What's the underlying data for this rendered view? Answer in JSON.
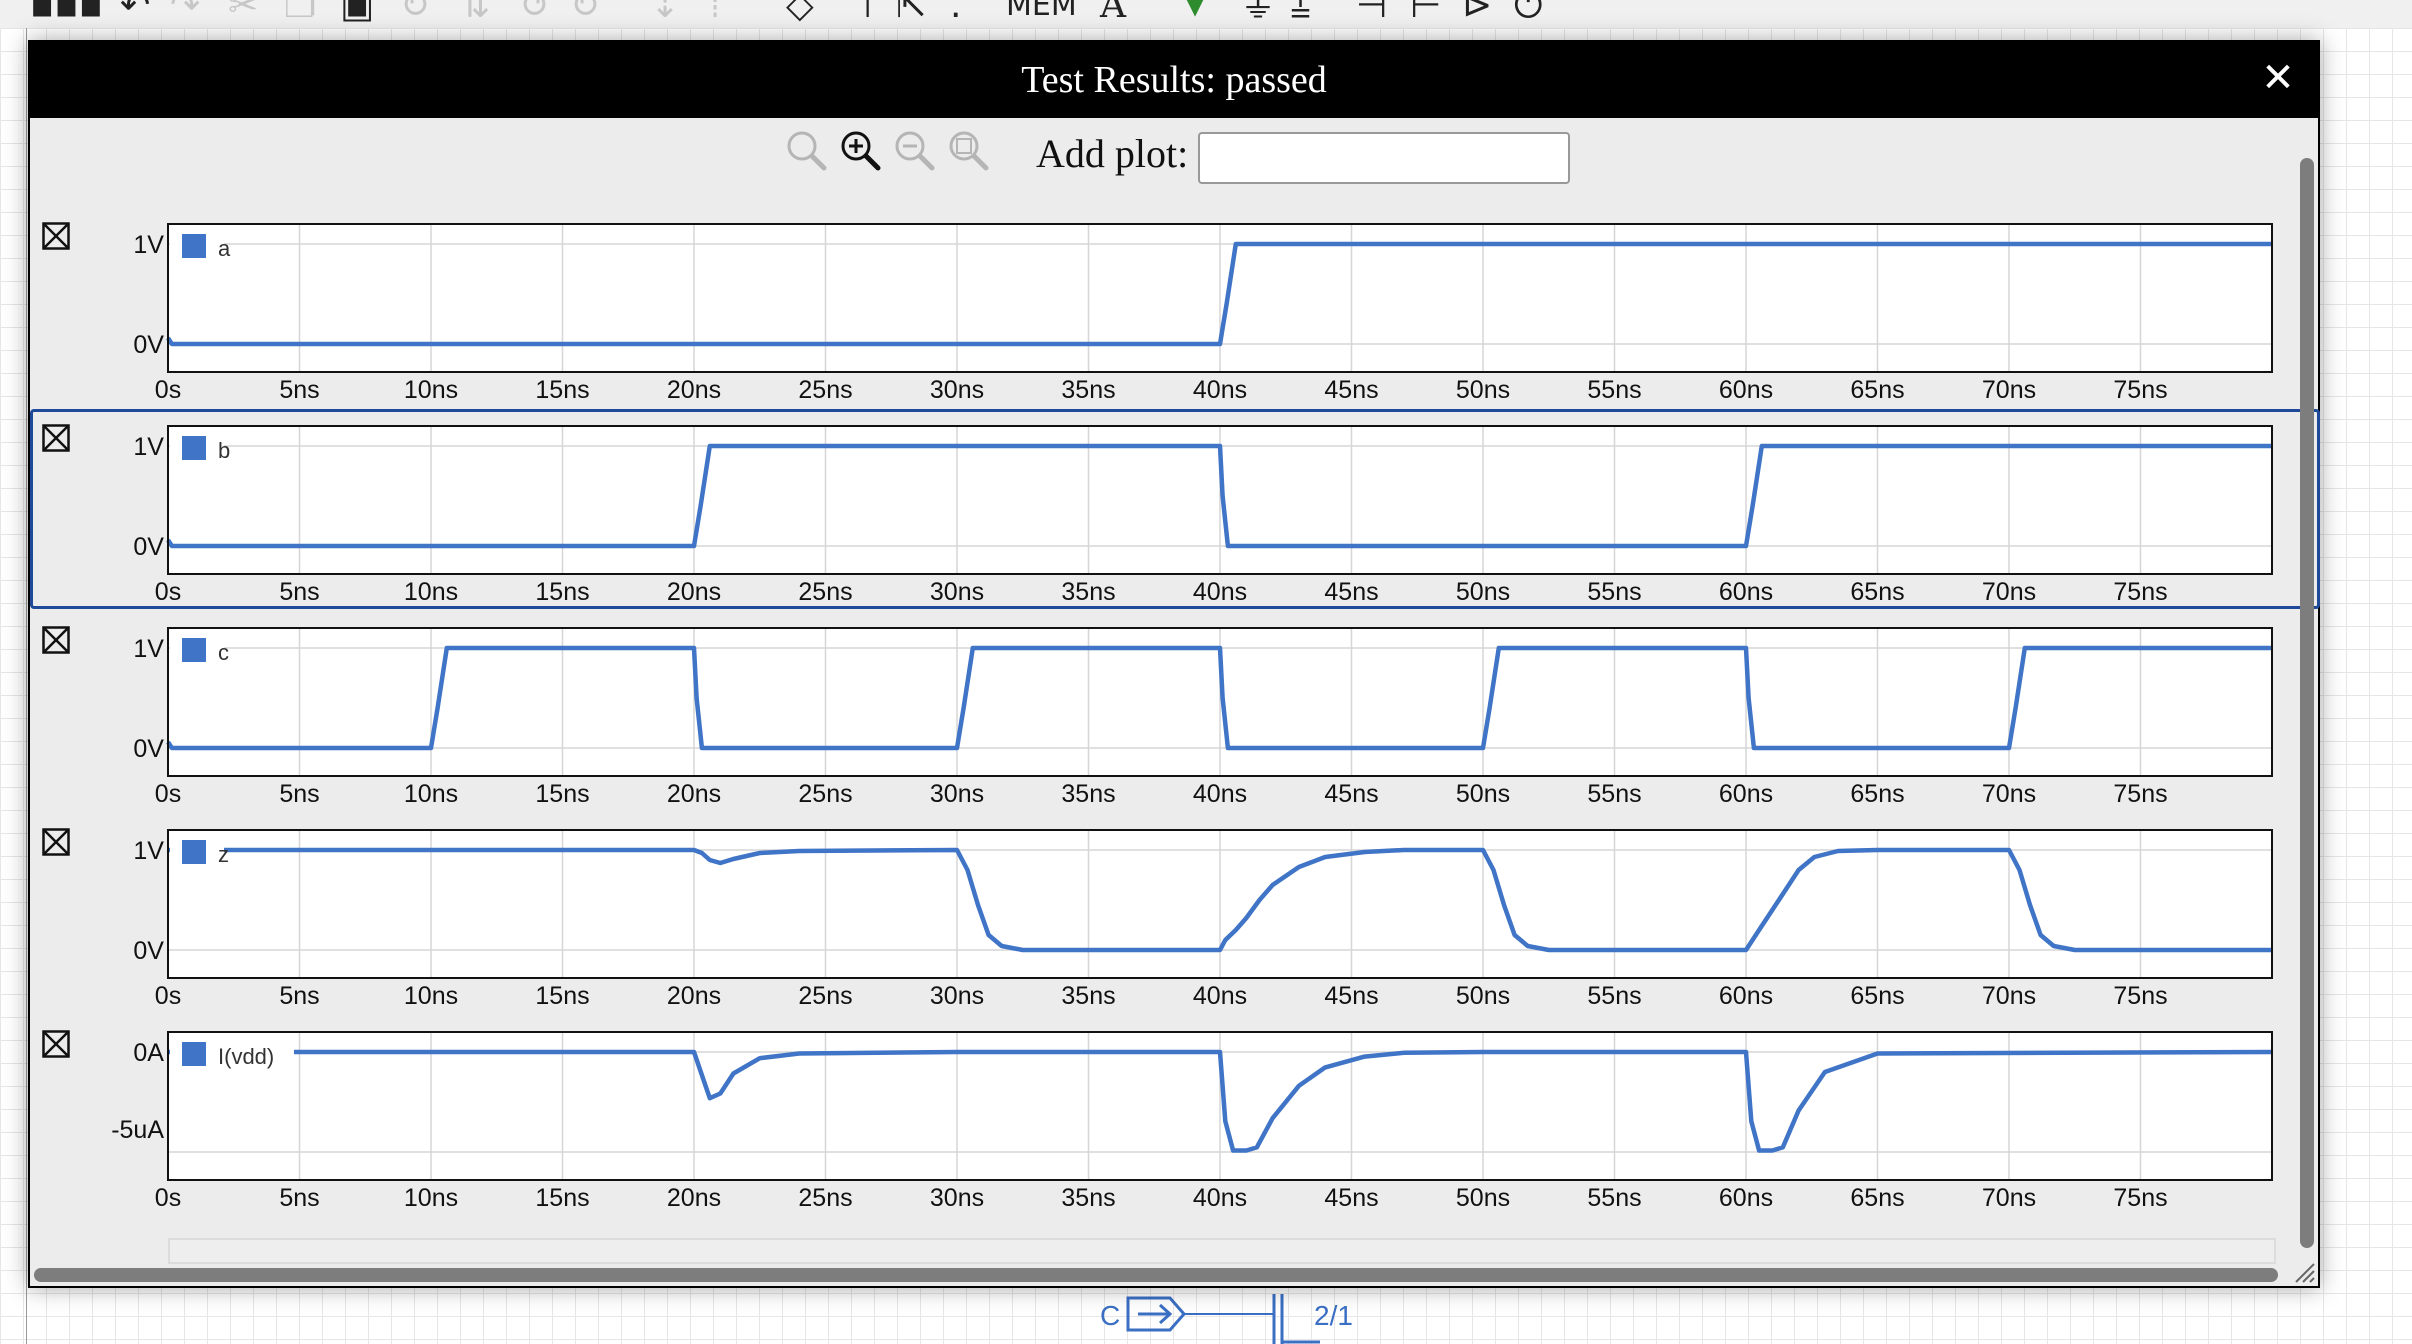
{
  "window": {
    "title": "Test Results: passed",
    "close_glyph": "✕"
  },
  "toolbar": {
    "mem_label": "MEM",
    "text_tool_label": "A",
    "icons": [
      "grid-menu-icon",
      "undo-icon",
      "redo-icon",
      "cut-icon",
      "copy-icon",
      "paste-icon",
      "rotate-icon",
      "reflect-icon",
      "probe-icon",
      "text-tool-icon",
      "check-icon",
      "ground-icon",
      "waveform-icon",
      "transistor-icon",
      "gate-icon",
      "power-icon"
    ]
  },
  "zoom": {
    "add_plot_label": "Add plot:",
    "add_plot_value": "",
    "icons": [
      "zoom-reset-icon",
      "zoom-in-icon",
      "zoom-out-icon",
      "zoom-fit-icon"
    ]
  },
  "schematic": {
    "port_label": "C",
    "ratio_label": "2/1"
  },
  "colors": {
    "trace": "#3f74c6",
    "selection": "#1f4a99",
    "grid": "#d6d6d6"
  },
  "chart_data": [
    {
      "type": "line",
      "legend": "a",
      "x_unit": "ns",
      "xlim": [
        0,
        80
      ],
      "xticks": [
        "0s",
        "5ns",
        "10ns",
        "15ns",
        "20ns",
        "25ns",
        "30ns",
        "35ns",
        "40ns",
        "45ns",
        "50ns",
        "55ns",
        "60ns",
        "65ns",
        "70ns",
        "75ns"
      ],
      "y_tick_labels": [
        "1V",
        "0V"
      ],
      "ylim": [
        0,
        1
      ],
      "x": [
        0,
        0.15,
        40,
        40.25,
        40.6,
        80
      ],
      "y": [
        0.06,
        0,
        0,
        0.4,
        1,
        1
      ]
    },
    {
      "type": "line",
      "legend": "b",
      "x_unit": "ns",
      "xlim": [
        0,
        80
      ],
      "xticks": [
        "0s",
        "5ns",
        "10ns",
        "15ns",
        "20ns",
        "25ns",
        "30ns",
        "35ns",
        "40ns",
        "45ns",
        "50ns",
        "55ns",
        "60ns",
        "65ns",
        "70ns",
        "75ns"
      ],
      "y_tick_labels": [
        "1V",
        "0V"
      ],
      "ylim": [
        0,
        1
      ],
      "x": [
        0,
        0.15,
        20,
        20.25,
        20.6,
        40,
        40.1,
        40.3,
        60,
        60.25,
        60.6,
        80
      ],
      "y": [
        0.06,
        0,
        0,
        0.4,
        1,
        1,
        0.5,
        0,
        0,
        0.4,
        1,
        1
      ]
    },
    {
      "type": "line",
      "legend": "c",
      "x_unit": "ns",
      "xlim": [
        0,
        80
      ],
      "xticks": [
        "0s",
        "5ns",
        "10ns",
        "15ns",
        "20ns",
        "25ns",
        "30ns",
        "35ns",
        "40ns",
        "45ns",
        "50ns",
        "55ns",
        "60ns",
        "65ns",
        "70ns",
        "75ns"
      ],
      "y_tick_labels": [
        "1V",
        "0V"
      ],
      "ylim": [
        0,
        1
      ],
      "x": [
        0,
        0.15,
        10,
        10.25,
        10.6,
        20,
        20.1,
        20.3,
        30,
        30.25,
        30.6,
        40,
        40.1,
        40.3,
        50,
        50.25,
        50.6,
        60,
        60.1,
        60.3,
        70,
        70.25,
        70.6,
        80
      ],
      "y": [
        0.06,
        0,
        0,
        0.4,
        1,
        1,
        0.5,
        0,
        0,
        0.4,
        1,
        1,
        0.5,
        0,
        0,
        0.4,
        1,
        1,
        0.5,
        0,
        0,
        0.4,
        1,
        1
      ]
    },
    {
      "type": "line",
      "legend": "z",
      "x_unit": "ns",
      "xlim": [
        0,
        80
      ],
      "xticks": [
        "0s",
        "5ns",
        "10ns",
        "15ns",
        "20ns",
        "25ns",
        "30ns",
        "35ns",
        "40ns",
        "45ns",
        "50ns",
        "55ns",
        "60ns",
        "65ns",
        "70ns",
        "75ns"
      ],
      "y_tick_labels": [
        "1V",
        "0V"
      ],
      "ylim": [
        0,
        1
      ],
      "x": [
        0,
        20,
        20.3,
        20.6,
        21.0,
        21.5,
        22.5,
        24,
        30,
        30.4,
        30.8,
        31.2,
        31.7,
        32.5,
        40,
        40.2,
        40.6,
        41,
        41.5,
        42,
        43,
        44,
        45.5,
        47,
        50,
        50.4,
        50.8,
        51.2,
        51.7,
        52.5,
        60,
        60.5,
        61,
        61.5,
        62,
        62.6,
        63.5,
        65,
        70,
        70.4,
        70.8,
        71.2,
        71.7,
        72.5,
        80
      ],
      "y": [
        1,
        1,
        0.97,
        0.9,
        0.87,
        0.91,
        0.97,
        0.99,
        1,
        0.8,
        0.45,
        0.15,
        0.04,
        0,
        0,
        0.1,
        0.2,
        0.32,
        0.5,
        0.65,
        0.83,
        0.93,
        0.98,
        1,
        1,
        0.8,
        0.45,
        0.15,
        0.04,
        0,
        0,
        0.2,
        0.4,
        0.6,
        0.8,
        0.93,
        0.99,
        1,
        1,
        0.8,
        0.45,
        0.15,
        0.04,
        0,
        0
      ]
    },
    {
      "type": "line",
      "legend": "I(vdd)",
      "x_unit": "ns",
      "xlim": [
        0,
        80
      ],
      "xticks": [
        "0s",
        "5ns",
        "10ns",
        "15ns",
        "20ns",
        "25ns",
        "30ns",
        "35ns",
        "40ns",
        "45ns",
        "50ns",
        "55ns",
        "60ns",
        "65ns",
        "70ns",
        "75ns"
      ],
      "y_tick_labels": [
        "0A",
        "-5uA"
      ],
      "ylim": [
        -6.5,
        0
      ],
      "x": [
        0,
        20,
        20.3,
        20.6,
        21,
        21.5,
        22.5,
        24,
        30,
        40,
        40.2,
        40.5,
        41,
        41.4,
        42,
        43,
        44,
        45.5,
        47,
        50,
        60,
        60.2,
        60.5,
        61,
        61.4,
        62,
        63,
        65,
        80
      ],
      "y": [
        0,
        0,
        -1.5,
        -3.0,
        -2.7,
        -1.4,
        -0.4,
        -0.1,
        0,
        0,
        -4.5,
        -6.4,
        -6.4,
        -6.2,
        -4.3,
        -2.2,
        -1.0,
        -0.3,
        -0.05,
        0,
        0,
        -4.5,
        -6.4,
        -6.4,
        -6.2,
        -3.8,
        -1.3,
        -0.1,
        0
      ]
    }
  ]
}
